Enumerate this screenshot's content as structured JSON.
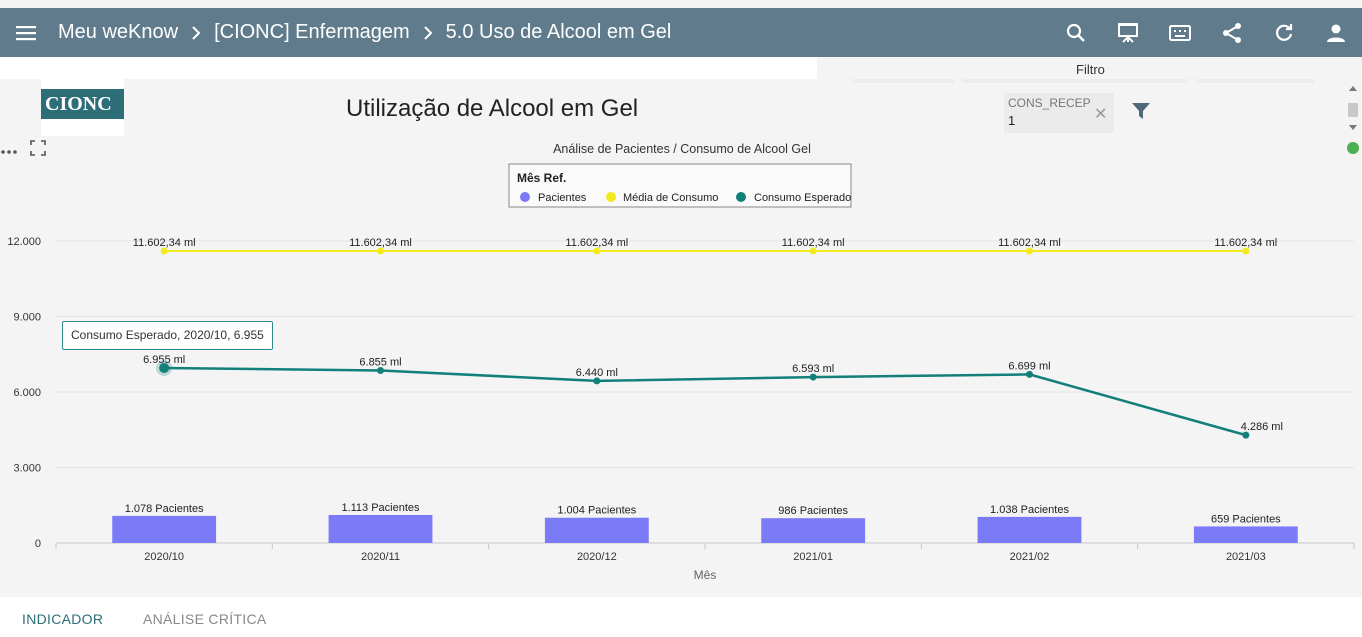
{
  "header": {
    "breadcrumbs": [
      "Meu weKnow",
      "[CIONC] Enfermagem",
      "5.0 Uso de Alcool em Gel"
    ],
    "icons": [
      "search-icon",
      "presentation-icon",
      "keyboard-icon",
      "share-icon",
      "refresh-icon",
      "user-icon"
    ]
  },
  "filter_panel": {
    "title": "Filtro",
    "chip_name": "CONS_RECEP",
    "chip_value": "1"
  },
  "logo": {
    "text": "CIONC"
  },
  "page": {
    "title": "Utilização de Alcool em Gel"
  },
  "tooltip": {
    "text": "Consumo Esperado, 2020/10, 6.955"
  },
  "tabs": [
    {
      "label": "INDICADOR",
      "active": true
    },
    {
      "label": "ANÁLISE CRÍTICA",
      "active": false
    }
  ],
  "colors": {
    "topbar": "#5f7b8c",
    "pacientes": "#7b7bf7",
    "media": "#f0ea1f",
    "esperado": "#127f7a",
    "accent": "#2e6e79"
  },
  "chart_data": {
    "type": "bar",
    "title": "Análise de Pacientes / Consumo de Alcool Gel",
    "legend_title": "Mês Ref.",
    "legend_position": "top-center",
    "xlabel": "Mês",
    "ylabel": "",
    "ylim": [
      0,
      12000
    ],
    "y_ticks": [
      0,
      3000,
      6000,
      9000,
      12000
    ],
    "y_tick_labels": [
      "0",
      "3.000",
      "6.000",
      "9.000",
      "12.000"
    ],
    "grid": true,
    "categories": [
      "2020/10",
      "2020/11",
      "2020/12",
      "2021/01",
      "2021/02",
      "2021/03"
    ],
    "series": [
      {
        "name": "Pacientes",
        "type": "bar",
        "color": "#7b7bf7",
        "values": [
          1078,
          1113,
          1004,
          986,
          1038,
          659
        ],
        "labels": [
          "1.078 Pacientes",
          "1.113 Pacientes",
          "1.004 Pacientes",
          "986 Pacientes",
          "1.038 Pacientes",
          "659 Pacientes"
        ]
      },
      {
        "name": "Média de Consumo",
        "type": "line",
        "color": "#f0ea1f",
        "values": [
          11602.34,
          11602.34,
          11602.34,
          11602.34,
          11602.34,
          11602.34
        ],
        "labels": [
          "11.602,34 ml",
          "11.602,34 ml",
          "11.602,34 ml",
          "11.602,34 ml",
          "11.602,34 ml",
          "11.602,34 ml"
        ]
      },
      {
        "name": "Consumo Esperado",
        "type": "line",
        "color": "#127f7a",
        "values": [
          6955,
          6855,
          6440,
          6593,
          6699,
          4286
        ],
        "labels": [
          "6.955 ml",
          "6.855 ml",
          "6.440 ml",
          "6.593 ml",
          "6.699 ml",
          "4.286 ml"
        ]
      }
    ]
  }
}
